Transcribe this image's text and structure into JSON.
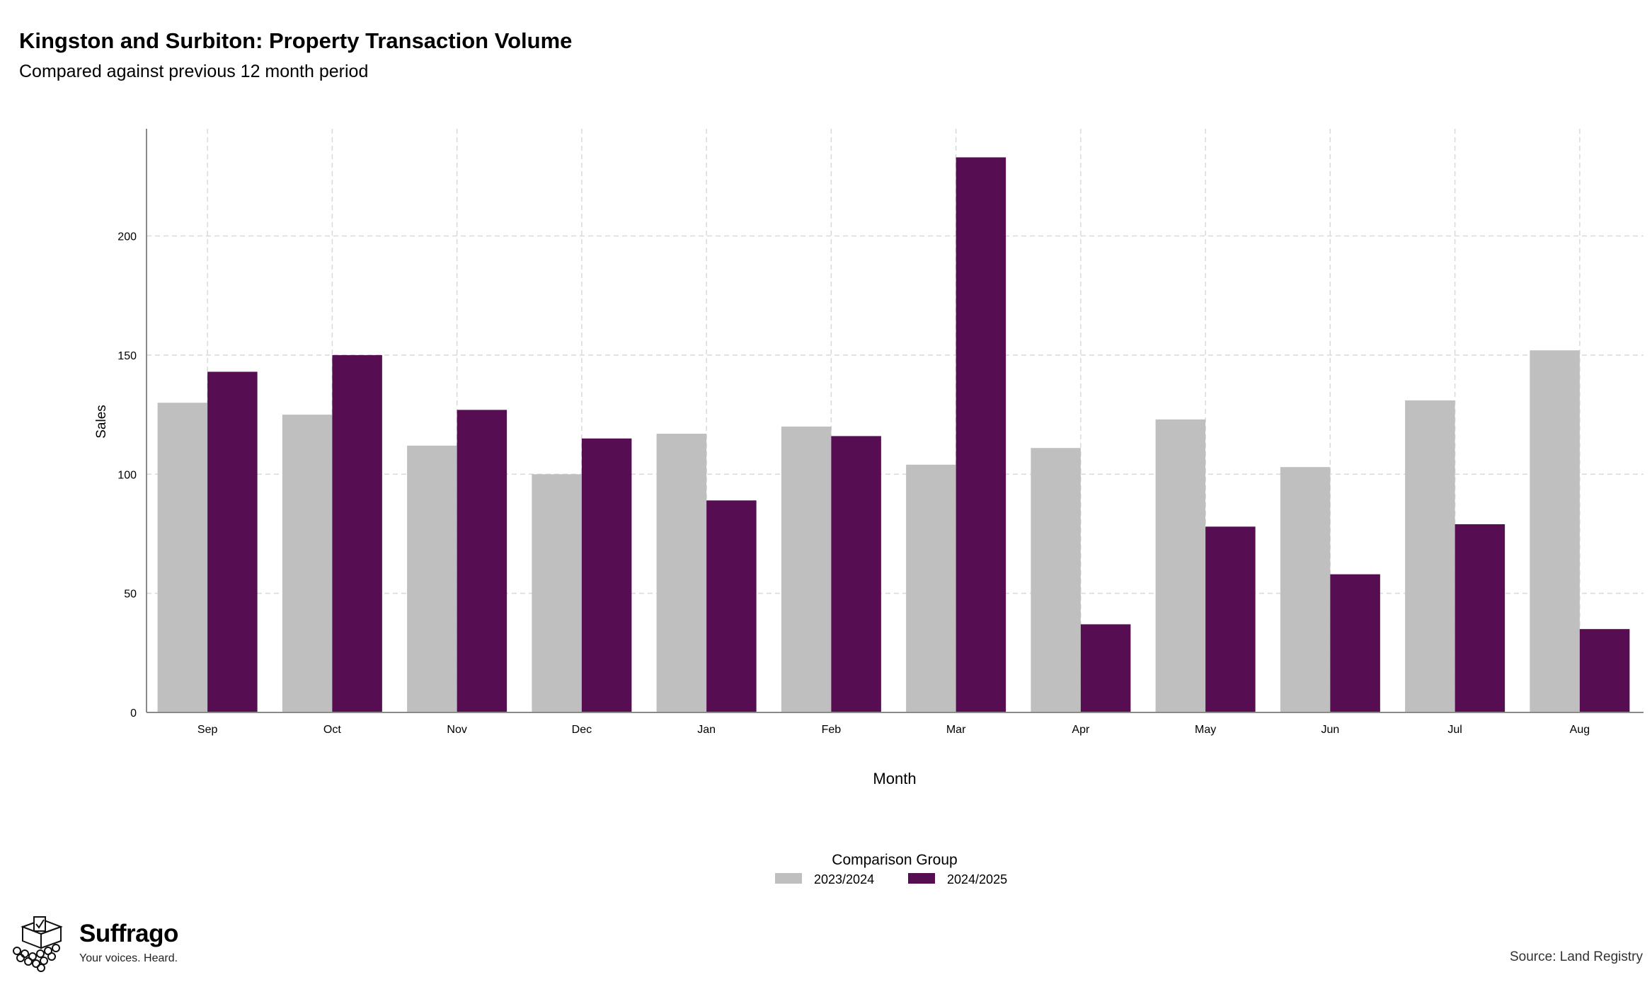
{
  "header": {
    "title": "Kingston and Surbiton: Property Transaction Volume",
    "subtitle": "Compared against previous 12 month period"
  },
  "chart_data": {
    "type": "bar",
    "title": "Kingston and Surbiton: Property Transaction Volume",
    "subtitle": "Compared against previous 12 month period",
    "xlabel": "Month",
    "ylabel": "Sales",
    "categories": [
      "Sep",
      "Oct",
      "Nov",
      "Dec",
      "Jan",
      "Feb",
      "Mar",
      "Apr",
      "May",
      "Jun",
      "Jul",
      "Aug"
    ],
    "series": [
      {
        "name": "2023/2024",
        "color": "#bfbfbf",
        "values": [
          130,
          125,
          112,
          100,
          117,
          120,
          104,
          111,
          123,
          103,
          131,
          152
        ]
      },
      {
        "name": "2024/2025",
        "color": "#560d52",
        "values": [
          143,
          150,
          127,
          115,
          89,
          116,
          233,
          37,
          78,
          58,
          79,
          35
        ]
      }
    ],
    "ylim": [
      0,
      245
    ],
    "yticks": [
      0,
      50,
      100,
      150,
      200
    ],
    "grid": true,
    "legend_title": "Comparison Group",
    "legend_position": "bottom-center"
  },
  "branding": {
    "logo_name": "Suffrago",
    "logo_tagline": "Your voices. Heard.",
    "logo_icon": "ballot-box-icon"
  },
  "footer": {
    "source": "Source: Land Registry"
  }
}
